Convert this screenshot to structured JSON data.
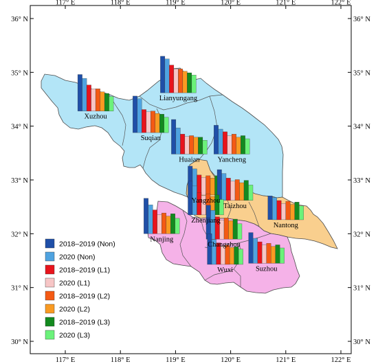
{
  "axes": {
    "lon_ticks": [
      "117° E",
      "118° E",
      "119° E",
      "120° E",
      "121° E",
      "122° E"
    ],
    "lat_ticks": [
      "36° N",
      "35° N",
      "34° N",
      "33° N",
      "32° N",
      "31° N",
      "30° N"
    ]
  },
  "regions": {
    "north_color": "#b3e5f7",
    "central_color": "#f9cf8e",
    "south_color": "#f5b2e8"
  },
  "legend": [
    {
      "label": "2018–2019 (Non)",
      "color": "#1f4fa8"
    },
    {
      "label": "2020 (Non)",
      "color": "#4fa3e0"
    },
    {
      "label": "2018–2019 (L1)",
      "color": "#e8141c"
    },
    {
      "label": "2020 (L1)",
      "color": "#f7c6c6"
    },
    {
      "label": "2018–2019 (L2)",
      "color": "#f45a14"
    },
    {
      "label": "2020 (L2)",
      "color": "#f99a22"
    },
    {
      "label": "2018–2019 (L3)",
      "color": "#138a1f"
    },
    {
      "label": "2020 (L3)",
      "color": "#6bf27a"
    }
  ],
  "cities": [
    {
      "name": "Lianyungang",
      "lon": 119.05,
      "lat": 34.62,
      "values": [
        0.95,
        0.88,
        0.72,
        0.62,
        0.62,
        0.56,
        0.52,
        0.46
      ]
    },
    {
      "name": "Xuzhou",
      "lon": 117.55,
      "lat": 34.28,
      "values": [
        0.95,
        0.85,
        0.68,
        0.58,
        0.58,
        0.5,
        0.46,
        0.38
      ]
    },
    {
      "name": "Suqian",
      "lon": 118.55,
      "lat": 33.88,
      "values": [
        0.95,
        0.88,
        0.6,
        0.54,
        0.56,
        0.5,
        0.48,
        0.4
      ]
    },
    {
      "name": "Huaian",
      "lon": 119.25,
      "lat": 33.48,
      "values": [
        0.9,
        0.68,
        0.52,
        0.46,
        0.48,
        0.44,
        0.44,
        0.36
      ]
    },
    {
      "name": "Yancheng",
      "lon": 120.02,
      "lat": 33.48,
      "values": [
        0.75,
        0.65,
        0.58,
        0.48,
        0.52,
        0.44,
        0.48,
        0.4
      ]
    },
    {
      "name": "Yangzhou",
      "lon": 119.55,
      "lat": 32.72,
      "values": [
        0.75,
        0.68,
        0.52,
        0.46,
        0.5,
        0.44,
        0.5,
        0.38
      ]
    },
    {
      "name": "Taizhou",
      "lon": 120.08,
      "lat": 32.62,
      "values": [
        0.8,
        0.7,
        0.58,
        0.5,
        0.54,
        0.46,
        0.52,
        0.4
      ]
    },
    {
      "name": "Zhenjiang",
      "lon": 119.55,
      "lat": 32.35,
      "values": [
        0.88,
        0.75,
        0.58,
        0.5,
        0.55,
        0.48,
        0.52,
        0.4
      ]
    },
    {
      "name": "Nantong",
      "lon": 121.0,
      "lat": 32.26,
      "values": [
        0.62,
        0.58,
        0.5,
        0.42,
        0.48,
        0.4,
        0.46,
        0.36
      ]
    },
    {
      "name": "Nanjing",
      "lon": 118.75,
      "lat": 32.0,
      "values": [
        0.92,
        0.75,
        0.62,
        0.5,
        0.54,
        0.46,
        0.52,
        0.4
      ]
    },
    {
      "name": "Changzhou",
      "lon": 119.88,
      "lat": 31.9,
      "values": [
        0.88,
        0.75,
        0.58,
        0.5,
        0.55,
        0.48,
        0.52,
        0.4
      ]
    },
    {
      "name": "Wuxi",
      "lon": 119.9,
      "lat": 31.43,
      "values": [
        0.8,
        0.65,
        0.56,
        0.48,
        0.5,
        0.44,
        0.46,
        0.4
      ]
    },
    {
      "name": "Suzhou",
      "lon": 120.65,
      "lat": 31.45,
      "values": [
        0.8,
        0.65,
        0.56,
        0.48,
        0.52,
        0.44,
        0.48,
        0.4
      ]
    }
  ]
}
